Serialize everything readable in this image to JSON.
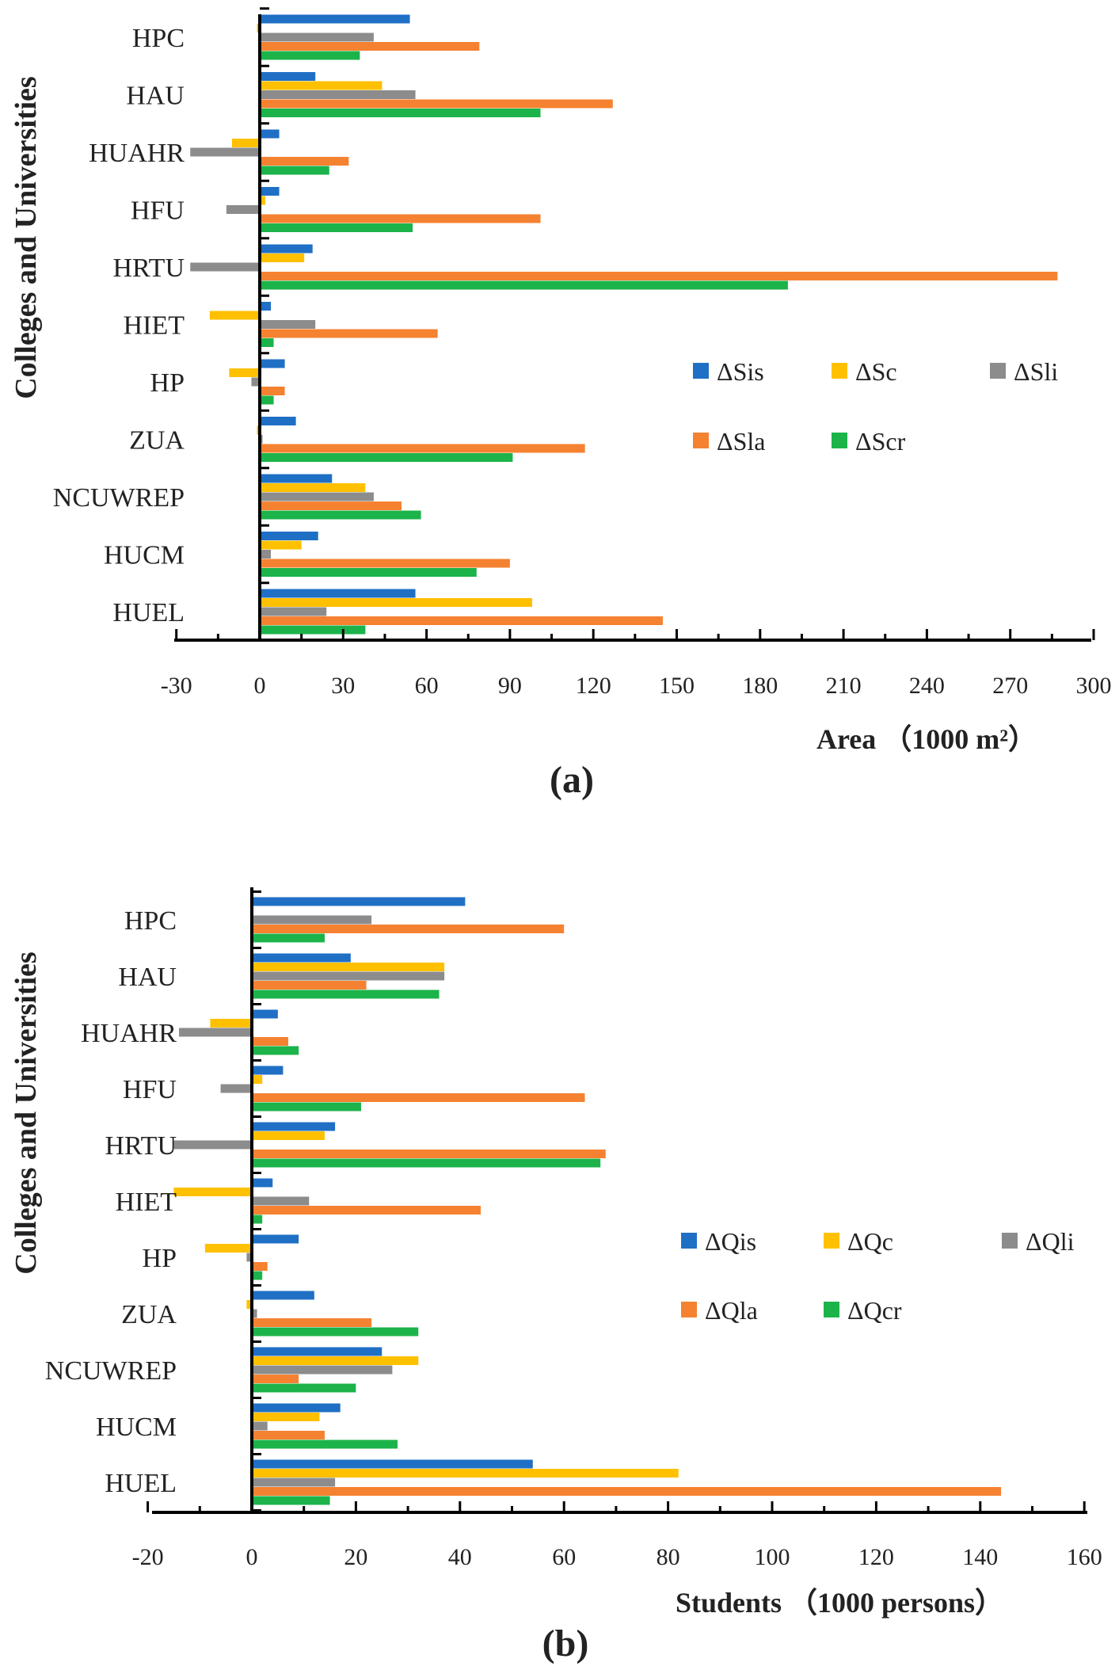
{
  "chart_data": [
    {
      "type": "bar",
      "orientation": "horizontal",
      "panel_label": "(a)",
      "ylabel": "Colleges and Universities",
      "xlabel": "Area  （1000 m²）",
      "xlim": [
        -30,
        300
      ],
      "xticks": [
        "-30",
        "0",
        "30",
        "60",
        "90",
        "120",
        "150",
        "180",
        "210",
        "240",
        "270",
        "300"
      ],
      "categories": [
        "HPC",
        "HAU",
        "HUAHR",
        "HFU",
        "HRTU",
        "HIET",
        "HP",
        "ZUA",
        "NCUWREP",
        "HUCM",
        "HUEL"
      ],
      "legend": "inside-right",
      "series": [
        {
          "name": "ΔSis",
          "color": "#1f6fc5",
          "values": [
            54,
            20,
            7,
            7,
            19,
            4,
            9,
            13,
            26,
            21,
            56
          ]
        },
        {
          "name": "ΔSc",
          "color": "#ffc000",
          "values": [
            -1,
            44,
            -10,
            2,
            16,
            -18,
            -11,
            -1,
            38,
            15,
            98
          ]
        },
        {
          "name": "ΔSli",
          "color": "#8c8c8c",
          "values": [
            41,
            56,
            -25,
            -12,
            -25,
            20,
            -3,
            1,
            41,
            4,
            24
          ]
        },
        {
          "name": "ΔSla",
          "color": "#f58231",
          "values": [
            79,
            127,
            32,
            101,
            287,
            64,
            9,
            117,
            51,
            90,
            145
          ]
        },
        {
          "name": "ΔScr",
          "color": "#1cb34a",
          "values": [
            36,
            101,
            25,
            55,
            190,
            5,
            5,
            91,
            58,
            78,
            38
          ]
        }
      ]
    },
    {
      "type": "bar",
      "orientation": "horizontal",
      "panel_label": "(b)",
      "ylabel": "Colleges and Universities",
      "xlabel": "Students  （1000 persons）",
      "xlim": [
        -20,
        160
      ],
      "xticks": [
        "-20",
        "0",
        "20",
        "40",
        "60",
        "80",
        "100",
        "120",
        "140",
        "160"
      ],
      "categories": [
        "HPC",
        "HAU",
        "HUAHR",
        "HFU",
        "HRTU",
        "HIET",
        "HP",
        "ZUA",
        "NCUWREP",
        "HUCM",
        "HUEL"
      ],
      "legend": "inside-right",
      "series": [
        {
          "name": "ΔQis",
          "color": "#1f6fc5",
          "values": [
            41,
            19,
            5,
            6,
            16,
            4,
            9,
            12,
            25,
            17,
            54
          ]
        },
        {
          "name": "ΔQc",
          "color": "#ffc000",
          "values": [
            0,
            37,
            -8,
            2,
            14,
            -15,
            -9,
            -1,
            32,
            13,
            82
          ]
        },
        {
          "name": "ΔQli",
          "color": "#8c8c8c",
          "values": [
            23,
            37,
            -14,
            -6,
            -15,
            11,
            -1,
            1,
            27,
            3,
            16
          ]
        },
        {
          "name": "ΔQla",
          "color": "#f58231",
          "values": [
            60,
            22,
            7,
            64,
            68,
            44,
            3,
            23,
            9,
            14,
            144
          ]
        },
        {
          "name": "ΔQcr",
          "color": "#1cb34a",
          "values": [
            14,
            36,
            9,
            21,
            67,
            2,
            2,
            32,
            20,
            28,
            15
          ]
        }
      ]
    }
  ]
}
